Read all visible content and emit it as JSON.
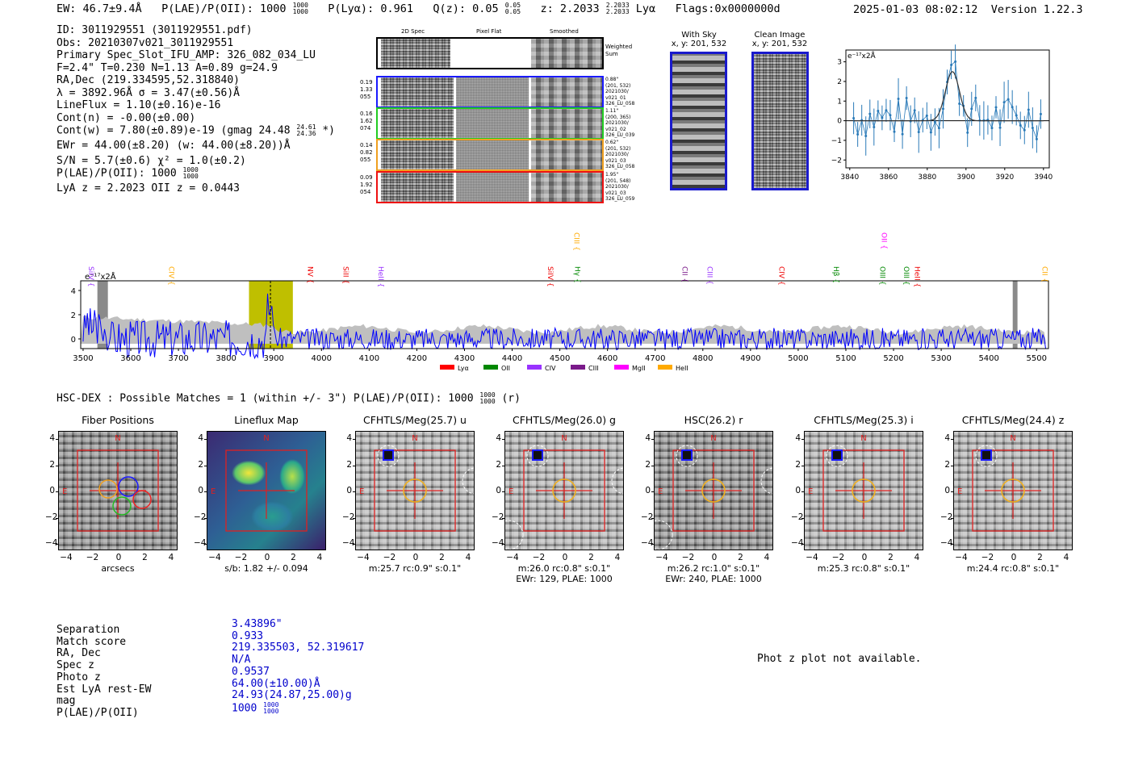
{
  "header": {
    "ew": "EW: 46.7±9.4Å",
    "plae_label": "P(LAE)/P(OII): 1000",
    "plae_hi": "1000",
    "plae_lo": "1000",
    "plya": "P(Lyα): 0.961",
    "qz": "Q(z): 0.05",
    "qz_hi": "0.05",
    "qz_lo": "0.05",
    "z": "z: 2.2033",
    "z_hi": "2.2033",
    "z_lo": "2.2033",
    "z_line": "Lyα",
    "flags": "Flags:0x0000000d",
    "datetime": "2025-01-03 08:02:12",
    "version": "Version 1.22.3"
  },
  "info": {
    "id": "ID: 3011929551 (3011929551.pdf)",
    "obs": "Obs: 20210307v021_3011929551",
    "slot": "Primary Spec_Slot_IFU_AMP: 326_082_034_LU",
    "params": "F=2.4\"  T=0.230  N=1.13  A=0.89  g=24.9",
    "radec": "RA,Dec (219.334595,52.318840)",
    "lambda": "λ = 3892.96Å  σ = 3.47(±0.56)Å",
    "lineflux": "LineFlux = 1.10(±0.16)e-16",
    "contn": "Cont(n) = -0.00(±0.00)",
    "contw": "Cont(w) = 7.80(±0.89)e-19 (gmag 24.48",
    "contw_hi": "24.61",
    "contw_lo": "24.36",
    "contw_end": "*)",
    "ewr": "EWr = 44.00(±8.20) (w: 44.00(±8.20))Å",
    "sn": "S/N = 5.7(±0.6)  χ² = 1.0(±0.2)",
    "plae": "P(LAE)/P(OII): 1000",
    "plae_hi": "1000",
    "plae_lo": "1000",
    "lyaz": "LyA z = 2.2023  OII z = 0.0443"
  },
  "spec2d": {
    "col_2d": "2D Spec",
    "col_flat": "Pixel Flat",
    "col_smooth": "Smoothed",
    "weighted": "Weighted",
    "sum": "Sum",
    "rows": [
      {
        "l1": "0.19",
        "l2": "1.33",
        "l3": "055",
        "r1": "0.88\"",
        "r2": "(201, 532)",
        "r3": "2021030/",
        "r4": "v021_01",
        "r5": "326_LU_058",
        "color": "#1a1aff"
      },
      {
        "l1": "0.16",
        "l2": "1.62",
        "l3": "074",
        "r1": "1.11\"",
        "r2": "(200, 365)",
        "r3": "2021030/",
        "r4": "v021_02",
        "r5": "326_LU_039",
        "color": "#22cc22"
      },
      {
        "l1": "0.14",
        "l2": "0.82",
        "l3": "055",
        "r1": "0.62\"",
        "r2": "(201, 532)",
        "r3": "2021030/",
        "r4": "v021_03",
        "r5": "326_LU_058",
        "color": "#f0a020"
      },
      {
        "l1": "0.09",
        "l2": "1.92",
        "l3": "054",
        "r1": "1.95\"",
        "r2": "(201, 548)",
        "r3": "2021030/",
        "r4": "v021_03",
        "r5": "326_LU_059",
        "color": "#ee1111"
      }
    ]
  },
  "sky": {
    "title": "With Sky",
    "coords": "x, y: 201, 532",
    "clean_title": "Clean Image",
    "clean_coords": "x, y: 201, 532"
  },
  "zoom_chart": {
    "type": "line",
    "scale_label": "e⁻¹⁷x2Å",
    "x_ticks": [
      "3840",
      "3860",
      "3880",
      "3900",
      "3920",
      "3940"
    ],
    "y_ticks": [
      "3",
      "2",
      "1",
      "0",
      "−1",
      "−2"
    ],
    "xlim": [
      3838,
      3943
    ],
    "ylim": [
      -2.4,
      3.6
    ]
  },
  "full_chart": {
    "type": "line",
    "scale_label": "e⁻¹⁷x2Å",
    "x_ticks": [
      "3500",
      "3600",
      "3700",
      "3800",
      "3900",
      "4000",
      "4100",
      "4200",
      "4300",
      "4400",
      "4500",
      "4600",
      "4700",
      "4800",
      "4900",
      "5000",
      "5100",
      "5200",
      "5300",
      "5400",
      "5500"
    ],
    "y_ticks": [
      "4",
      "2",
      "0"
    ],
    "xlim": [
      3495,
      5525
    ],
    "ylim": [
      -0.8,
      4.8
    ],
    "lines": [
      {
        "name": "SiIV",
        "x": 3512,
        "color": "#9933ff",
        "level": 0
      },
      {
        "name": "CIV",
        "x": 3680,
        "color": "#ffaa00",
        "level": 0
      },
      {
        "name": "NV",
        "x": 3972,
        "color": "#ee0000",
        "level": 0
      },
      {
        "name": "SiII",
        "x": 4046,
        "color": "#ee0000",
        "level": 0
      },
      {
        "name": "HeII",
        "x": 4120,
        "color": "#9933ff",
        "level": 0
      },
      {
        "name": "SiIV",
        "x": 4475,
        "color": "#ee0000",
        "level": 0
      },
      {
        "name": "CIII",
        "x": 4530,
        "color": "#ffaa00",
        "level": 1
      },
      {
        "name": "Hγ",
        "x": 4532,
        "color": "#008800",
        "level": 0
      },
      {
        "name": "CII",
        "x": 4757,
        "color": "#7a1a8a",
        "level": 0
      },
      {
        "name": "CIII",
        "x": 4810,
        "color": "#9933ff",
        "level": 0
      },
      {
        "name": "CIV",
        "x": 4960,
        "color": "#ee0000",
        "level": 0
      },
      {
        "name": "Hβ",
        "x": 5075,
        "color": "#008800",
        "level": 0
      },
      {
        "name": "OII",
        "x": 5175,
        "color": "#ff00ff",
        "level": 1
      },
      {
        "name": "OIII",
        "x": 5172,
        "color": "#008800",
        "level": 0
      },
      {
        "name": "OIII",
        "x": 5222,
        "color": "#008800",
        "level": 0
      },
      {
        "name": "HeII",
        "x": 5245,
        "color": "#ee0000",
        "level": 0
      },
      {
        "name": "CII",
        "x": 5512,
        "color": "#ffaa00",
        "level": 0
      }
    ],
    "legend": [
      {
        "name": "Lyα",
        "color": "#ff0000"
      },
      {
        "name": "OII",
        "color": "#008800"
      },
      {
        "name": "CIV",
        "color": "#9933ff"
      },
      {
        "name": "CIII",
        "color": "#7a1a8a"
      },
      {
        "name": "MgII",
        "color": "#ff00ff"
      },
      {
        "name": "HeII",
        "color": "#ffaa00"
      }
    ]
  },
  "hsc": {
    "title": "HSC-DEX : Possible Matches = 1 (within +/- 3\")  P(LAE)/P(OII): 1000",
    "plae_hi": "1000",
    "plae_lo": "1000",
    "band": "(r)"
  },
  "cutouts": {
    "ticks": [
      "4",
      "2",
      "0",
      "−2",
      "−4"
    ],
    "xticks": [
      "−4",
      "−2",
      "0",
      "2",
      "4"
    ],
    "north": "N",
    "east": "E",
    "panels": [
      {
        "title": "Fiber Positions",
        "cap1": "arcsecs",
        "cap2": ""
      },
      {
        "title": "Lineflux Map",
        "cap1": "s/b: 1.82 +/- 0.094",
        "cap2": ""
      },
      {
        "title": "CFHTLS/Meg(25.7) u",
        "cap1": "m:25.7 rc:0.9\"  s:0.1\"",
        "cap2": ""
      },
      {
        "title": "CFHTLS/Meg(26.0) g",
        "cap1": "m:26.0 rc:0.8\"  s:0.1\"",
        "cap2": "EWr: 129, PLAE: 1000"
      },
      {
        "title": "HSC(26.2) r",
        "cap1": "m:26.2 rc:1.0\"  s:0.1\"",
        "cap2": "EWr: 240, PLAE: 1000"
      },
      {
        "title": "CFHTLS/Meg(25.3) i",
        "cap1": "m:25.3 rc:0.8\"  s:0.1\"",
        "cap2": ""
      },
      {
        "title": "CFHTLS/Meg(24.4) z",
        "cap1": "m:24.4 rc:0.8\"  s:0.1\"",
        "cap2": ""
      }
    ]
  },
  "match": {
    "labels": [
      "Separation",
      "Match score",
      "RA, Dec",
      "Spec z",
      "Photo z",
      "Est LyA rest-EW",
      "mag",
      "P(LAE)/P(OII)"
    ],
    "values": [
      "3.43896\"",
      "0.933",
      "219.335503, 52.319617",
      "N/A",
      "0.9537",
      "64.00(±10.00)Å",
      "24.93(24.87,25.00)g",
      "1000"
    ],
    "plae_hi": "1000",
    "plae_lo": "1000"
  },
  "photz": "Phot z plot not available."
}
